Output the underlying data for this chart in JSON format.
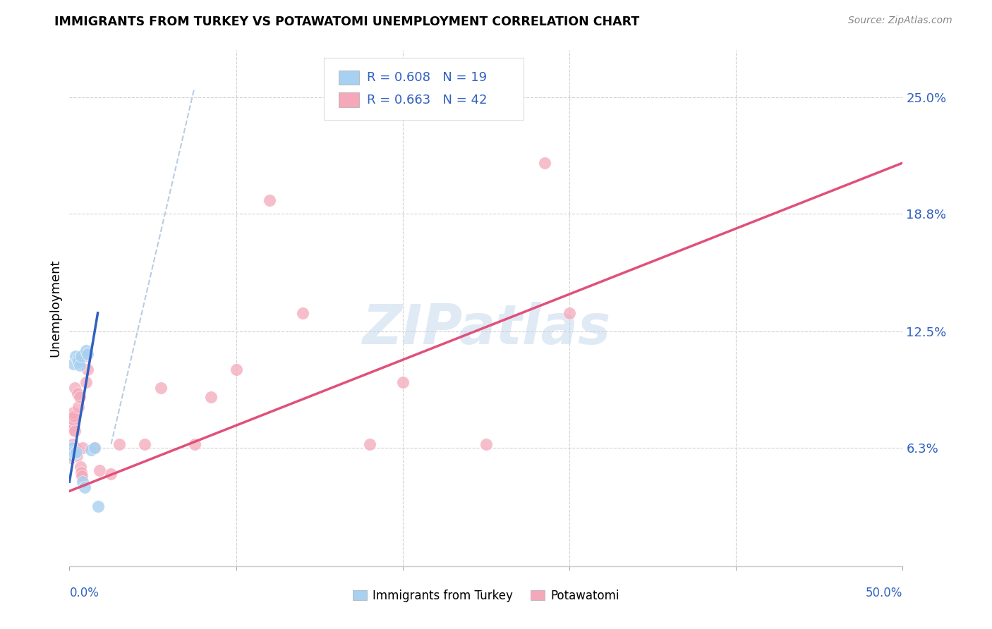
{
  "title": "IMMIGRANTS FROM TURKEY VS POTAWATOMI UNEMPLOYMENT CORRELATION CHART",
  "source": "Source: ZipAtlas.com",
  "ylabel": "Unemployment",
  "ytick_labels": [
    "6.3%",
    "12.5%",
    "18.8%",
    "25.0%"
  ],
  "ytick_values": [
    6.3,
    12.5,
    18.8,
    25.0
  ],
  "xlim": [
    0.0,
    50.0
  ],
  "ylim": [
    0.0,
    27.5
  ],
  "legend_label1": "Immigrants from Turkey",
  "legend_label2": "Potawatomi",
  "R1": "0.608",
  "N1": "19",
  "R2": "0.663",
  "N2": "42",
  "color_blue": "#A8D0F0",
  "color_pink": "#F4A8BA",
  "line_blue": "#3060C0",
  "line_pink": "#E0507A",
  "line_dashed": "#B0C8E0",
  "watermark_text": "ZIPatlas",
  "blue_scatter_x": [
    0.05,
    0.1,
    0.15,
    0.2,
    0.25,
    0.3,
    0.35,
    0.4,
    0.5,
    0.55,
    0.6,
    0.7,
    0.8,
    0.9,
    1.0,
    1.1,
    1.3,
    1.5,
    1.7
  ],
  "blue_scatter_y": [
    6.2,
    5.9,
    6.3,
    6.1,
    10.8,
    6.0,
    11.2,
    6.1,
    11.0,
    10.9,
    10.7,
    11.2,
    4.5,
    4.2,
    11.5,
    11.3,
    6.2,
    6.3,
    3.2
  ],
  "pink_scatter_x": [
    0.05,
    0.08,
    0.1,
    0.12,
    0.15,
    0.18,
    0.2,
    0.22,
    0.25,
    0.28,
    0.3,
    0.32,
    0.35,
    0.38,
    0.4,
    0.45,
    0.5,
    0.55,
    0.6,
    0.65,
    0.7,
    0.75,
    0.8,
    0.9,
    1.0,
    1.1,
    1.5,
    1.8,
    2.5,
    3.0,
    4.5,
    5.5,
    7.5,
    8.5,
    10.0,
    12.0,
    14.0,
    18.0,
    20.0,
    25.0,
    30.0,
    28.5
  ],
  "pink_scatter_y": [
    6.0,
    6.2,
    5.8,
    6.1,
    7.5,
    7.3,
    6.5,
    7.8,
    8.2,
    8.0,
    7.2,
    9.5,
    6.1,
    6.3,
    6.2,
    5.9,
    9.2,
    8.5,
    9.0,
    5.3,
    5.0,
    4.8,
    6.3,
    11.2,
    9.8,
    10.5,
    6.3,
    5.1,
    4.9,
    6.5,
    6.5,
    9.5,
    6.5,
    9.0,
    10.5,
    19.5,
    13.5,
    6.5,
    9.8,
    6.5,
    13.5,
    21.5
  ],
  "blue_line_x": [
    0.0,
    1.7
  ],
  "blue_line_y": [
    4.5,
    13.5
  ],
  "pink_line_x": [
    0.0,
    50.0
  ],
  "pink_line_y": [
    4.0,
    21.5
  ],
  "dashed_line_x": [
    2.5,
    7.5
  ],
  "dashed_line_y": [
    6.5,
    25.5
  ]
}
